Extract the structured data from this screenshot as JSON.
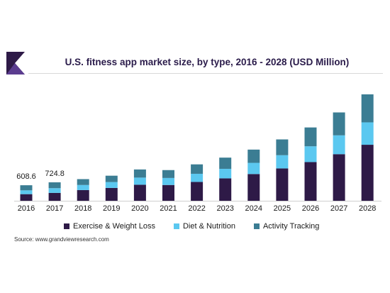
{
  "chart_data": {
    "type": "bar",
    "stacked": true,
    "title": "U.S. fitness app market size, by type, 2016 - 2028 (USD Million)",
    "categories": [
      "2016",
      "2017",
      "2018",
      "2019",
      "2020",
      "2021",
      "2022",
      "2023",
      "2024",
      "2025",
      "2026",
      "2027",
      "2028"
    ],
    "series": [
      {
        "name": "Exercise & Weight Loss",
        "color": "#2e1a47",
        "values": [
          260,
          310,
          420,
          505,
          630,
          620,
          740,
          880,
          1050,
          1270,
          1520,
          1830,
          2200
        ]
      },
      {
        "name": "Diet & Nutrition",
        "color": "#5bc8f0",
        "values": [
          150,
          185,
          200,
          230,
          280,
          275,
          320,
          375,
          440,
          520,
          620,
          740,
          880
        ]
      },
      {
        "name": "Activity Tracking",
        "color": "#3b7d93",
        "values": [
          200,
          230,
          230,
          250,
          320,
          310,
          370,
          440,
          520,
          620,
          740,
          900,
          1100
        ]
      }
    ],
    "data_labels": [
      {
        "category": "2016",
        "text": "608.6"
      },
      {
        "category": "2017",
        "text": "724.8"
      }
    ],
    "legend_position": "bottom",
    "grid": false
  },
  "source_text": "Source: www.grandviewresearch.com"
}
